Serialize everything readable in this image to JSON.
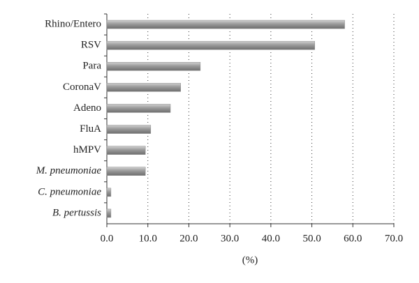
{
  "chart_data": {
    "type": "bar",
    "orientation": "horizontal",
    "categories": [
      "Rhino/Entero",
      "RSV",
      "Para",
      "CoronaV",
      "Adeno",
      "FluA",
      "hMPV",
      "M. pneumoniae",
      "C. pneumoniae",
      "B. pertussis"
    ],
    "category_font_style": [
      "normal",
      "normal",
      "normal",
      "normal",
      "normal",
      "normal",
      "normal",
      "italic",
      "italic",
      "italic"
    ],
    "values": [
      58,
      50.7,
      22.8,
      18,
      15.5,
      10.7,
      9.4,
      9.4,
      1.0,
      1.0
    ],
    "color": "#8c8c8c",
    "xlim": [
      0,
      70
    ],
    "xticks": [
      {
        "value": 0,
        "label": "0.0"
      },
      {
        "value": 10,
        "label": "10.0"
      },
      {
        "value": 20,
        "label": "20.0"
      },
      {
        "value": 30,
        "label": "30.0"
      },
      {
        "value": 40,
        "label": "40.0"
      },
      {
        "value": 50,
        "label": "50.0"
      },
      {
        "value": 60,
        "label": "60.0"
      },
      {
        "value": 70,
        "label": "70.0"
      }
    ],
    "xlabel": "(%)",
    "grid": true
  }
}
